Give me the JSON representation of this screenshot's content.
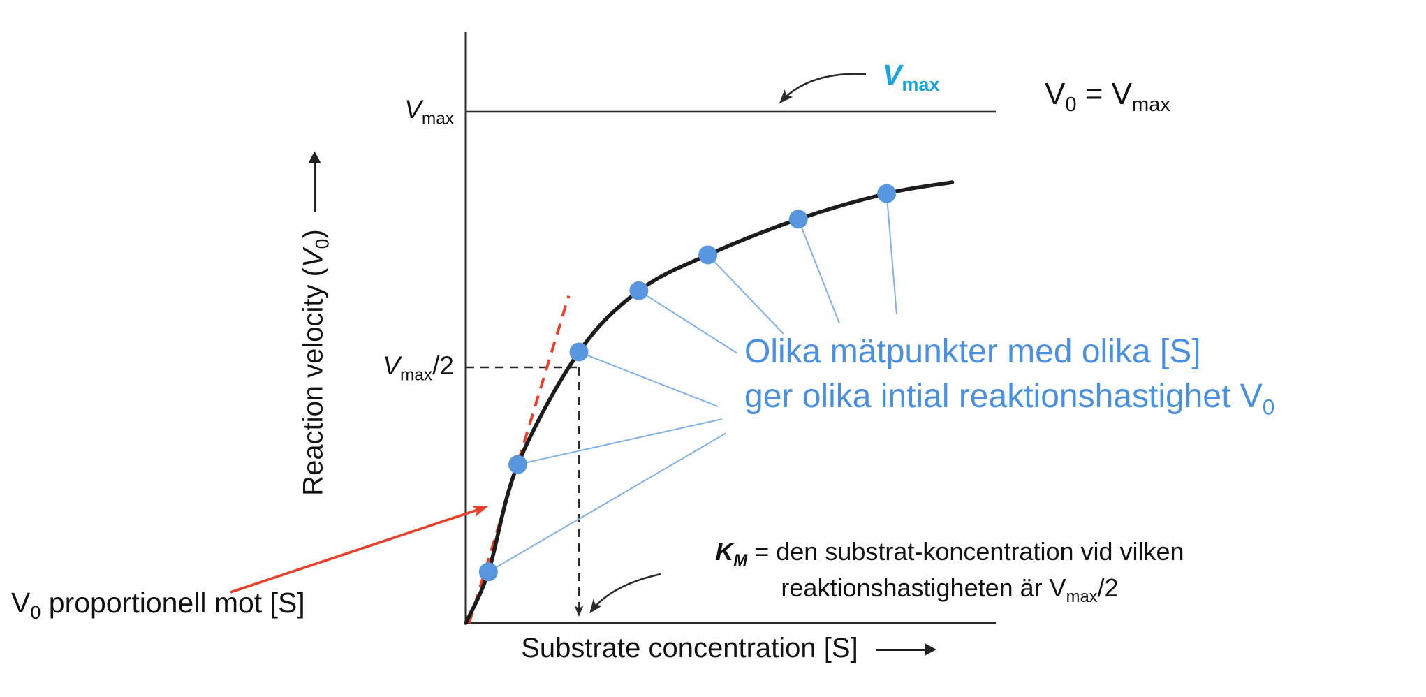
{
  "colors": {
    "curve": "#1c1c1c",
    "axis": "#2a2a2a",
    "points": "#5897e0",
    "fan_lines": "#7fb1ea",
    "blue_text": "#4a90e2",
    "cyan_text": "#1aa3dd",
    "red": "#e8402a"
  },
  "axes": {
    "y_label_main": "Reaction velocity (",
    "y_label_var": "V",
    "y_label_sub": "0",
    "y_label_end": ")",
    "x_label": "Substrate concentration [S]"
  },
  "ticks": {
    "vmax_var": "V",
    "vmax_sub": "max",
    "vmax2_var": "V",
    "vmax2_sub": "max",
    "vmax2_suffix": "/2"
  },
  "labels": {
    "cyan_vmax_var": "V",
    "cyan_vmax_sub": "max",
    "eq_v": "V",
    "eq_v_sub": "0",
    "eq_mid": " = V",
    "eq_sub": "max",
    "blue_1": "Olika mätpunkter med olika [S]",
    "blue_2": "ger olika intial reaktionshastighet V",
    "blue_2_sub": "0",
    "km_k": "K",
    "km_k_sub": "M",
    "km_rest": " = den substrat-koncentration vid vilken",
    "km_2a": "reaktionshastigheten är V",
    "km_2_sub": "max",
    "km_2b": "/2",
    "prop_v": "V",
    "prop_sub": "0",
    "prop_rest": " proportionell mot [S]"
  },
  "chart_data": {
    "type": "line",
    "title": "",
    "xlabel": "Substrate concentration [S]",
    "ylabel": "Reaction velocity (V0)",
    "x_units": "[S] expressed in multiples of KM (axis shows no numeric ticks)",
    "y_units": "V0 expressed as fraction of Vmax (axis shows no numeric ticks)",
    "xlim": [
      0,
      4.7
    ],
    "ylim": [
      0,
      1.16
    ],
    "grid": false,
    "legend": false,
    "curve": {
      "x": [
        0,
        0.2,
        0.46,
        1.0,
        1.53,
        2.14,
        2.94,
        3.72,
        4.3
      ],
      "y": [
        0,
        0.1,
        0.31,
        0.53,
        0.65,
        0.72,
        0.79,
        0.84,
        0.862
      ]
    },
    "points": {
      "x": [
        0.2,
        0.46,
        1.0,
        1.53,
        2.14,
        2.94,
        3.72
      ],
      "y": [
        0.1,
        0.31,
        0.53,
        0.65,
        0.72,
        0.79,
        0.84
      ]
    },
    "reference_lines": [
      {
        "label": "Vmax",
        "orientation": "horizontal",
        "y": 1.0,
        "style": "solid"
      },
      {
        "label": "Vmax-half",
        "orientation": "horizontal",
        "y": 0.5,
        "x_extent": 1.0,
        "style": "dashed"
      },
      {
        "label": "KM",
        "orientation": "vertical",
        "x": 1.0,
        "y_extent": 0.5,
        "style": "dashed"
      }
    ],
    "tangent_line": {
      "x": [
        0.03,
        0.91
      ],
      "y": [
        0.0,
        0.64
      ],
      "style": "dashed",
      "color": "red"
    }
  }
}
